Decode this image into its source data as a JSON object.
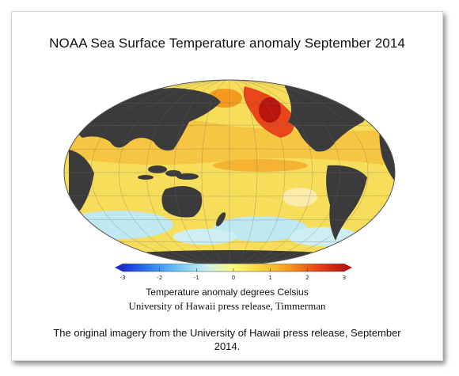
{
  "title": "NOAA Sea Surface Temperature anomaly September 2014",
  "colorbar": {
    "ticks": [
      "-3",
      "-2",
      "-1",
      "0",
      "1",
      "2",
      "3"
    ],
    "label": "Temperature anomaly degrees Celsius",
    "colors": [
      "#1c2bd6",
      "#2f7ff0",
      "#6fc5f5",
      "#c8f0f5",
      "#fbfb7a",
      "#fcd23a",
      "#f59a1f",
      "#e8461a",
      "#b8150f"
    ]
  },
  "credit": "University of Hawaii press release, Timmerman",
  "caption": "The original imagery from the University of Hawaii press release, September 2014.",
  "colors": {
    "land": "#3b3b3b",
    "warm_anomaly": "#f2a224",
    "hot_anomaly": "#d8391b",
    "mild_anomaly": "#f7de5a",
    "cool_anomaly": "#bfe8f0"
  }
}
